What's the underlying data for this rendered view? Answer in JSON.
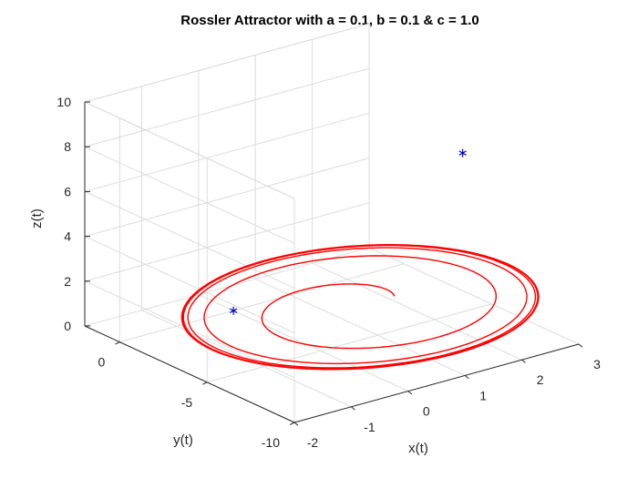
{
  "chart_data": {
    "type": "line",
    "projection": "3d",
    "title": "Rossler Attractor with a = 0.1, b = 0.1 & c = 1.0",
    "xlabel": "x(t)",
    "ylabel": "y(t)",
    "zlabel": "z(t)",
    "xlim": [
      -2,
      3
    ],
    "ylim": [
      -10,
      2
    ],
    "zlim": [
      0,
      10
    ],
    "xticks": [
      "-2",
      "-1",
      "0",
      "1",
      "2",
      "3"
    ],
    "yticks": [
      "-10",
      "-5",
      "0"
    ],
    "zticks": [
      "0",
      "2",
      "4",
      "6",
      "8",
      "10"
    ],
    "grid": true,
    "series": [
      {
        "style": "line",
        "color": "#ff0000",
        "trajectory": {
          "kind": "spiral-to-limit-cycle",
          "center_x": 1.0,
          "center_y": -4.0,
          "center_z": 0.9,
          "radius_start": 1.0,
          "radius_end": 4.2,
          "limit_cycle_loops": 6,
          "z_amplitude": 0.35
        }
      },
      {
        "style": "marker",
        "marker": "*",
        "color": "#0000cc",
        "points": [
          {
            "x": 0.0,
            "y": 0.0,
            "z": 0.0
          },
          {
            "x": 0.99,
            "y": -9.9,
            "z": 9.9
          }
        ]
      }
    ]
  }
}
